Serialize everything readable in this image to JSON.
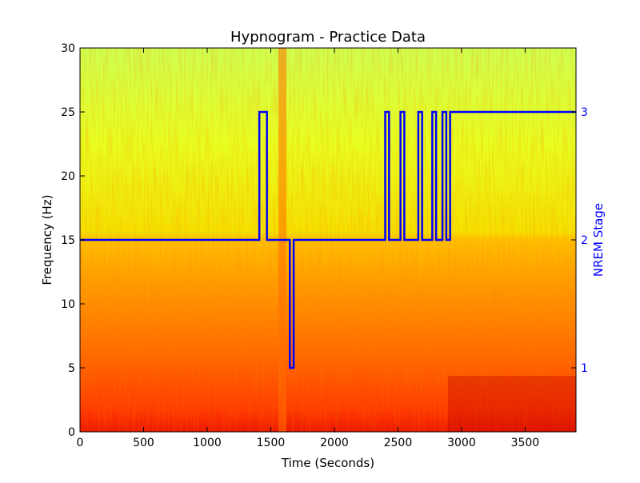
{
  "chart_data": {
    "type": "line",
    "title": "Hypnogram - Practice Data",
    "xlabel": "Time (Seconds)",
    "ylabel": "Frequency (Hz)",
    "y2label": "NREM Stage",
    "xlim": [
      0,
      3900
    ],
    "ylim": [
      0,
      30
    ],
    "y2lim": [
      0.5,
      3.5
    ],
    "x_ticks": [
      0,
      500,
      1000,
      1500,
      2000,
      2500,
      3000,
      3500
    ],
    "y_ticks": [
      0,
      5,
      10,
      15,
      20,
      25,
      30
    ],
    "y2_ticks": [
      1,
      2,
      3
    ],
    "background": {
      "type": "heatmap",
      "description": "spectrogram",
      "colormap": "jet",
      "low_freq_color": "#ff3000",
      "mid_freq_color": "#ffa500",
      "high_freq_color": "#e8ff2a"
    },
    "series": [
      {
        "color": "#0000ff",
        "step": true,
        "x": [
          0,
          1410,
          1410,
          1470,
          1470,
          1650,
          1650,
          1680,
          1680,
          2400,
          2400,
          2430,
          2430,
          2520,
          2520,
          2550,
          2550,
          2660,
          2660,
          2690,
          2690,
          2770,
          2770,
          2800,
          2800,
          2850,
          2850,
          2880,
          2880,
          2910,
          2910,
          3900
        ],
        "y": [
          2,
          2,
          3,
          3,
          2,
          2,
          1,
          1,
          2,
          2,
          3,
          3,
          2,
          2,
          3,
          3,
          2,
          2,
          3,
          3,
          2,
          2,
          3,
          3,
          2,
          2,
          3,
          3,
          2,
          2,
          3,
          3
        ]
      }
    ]
  }
}
